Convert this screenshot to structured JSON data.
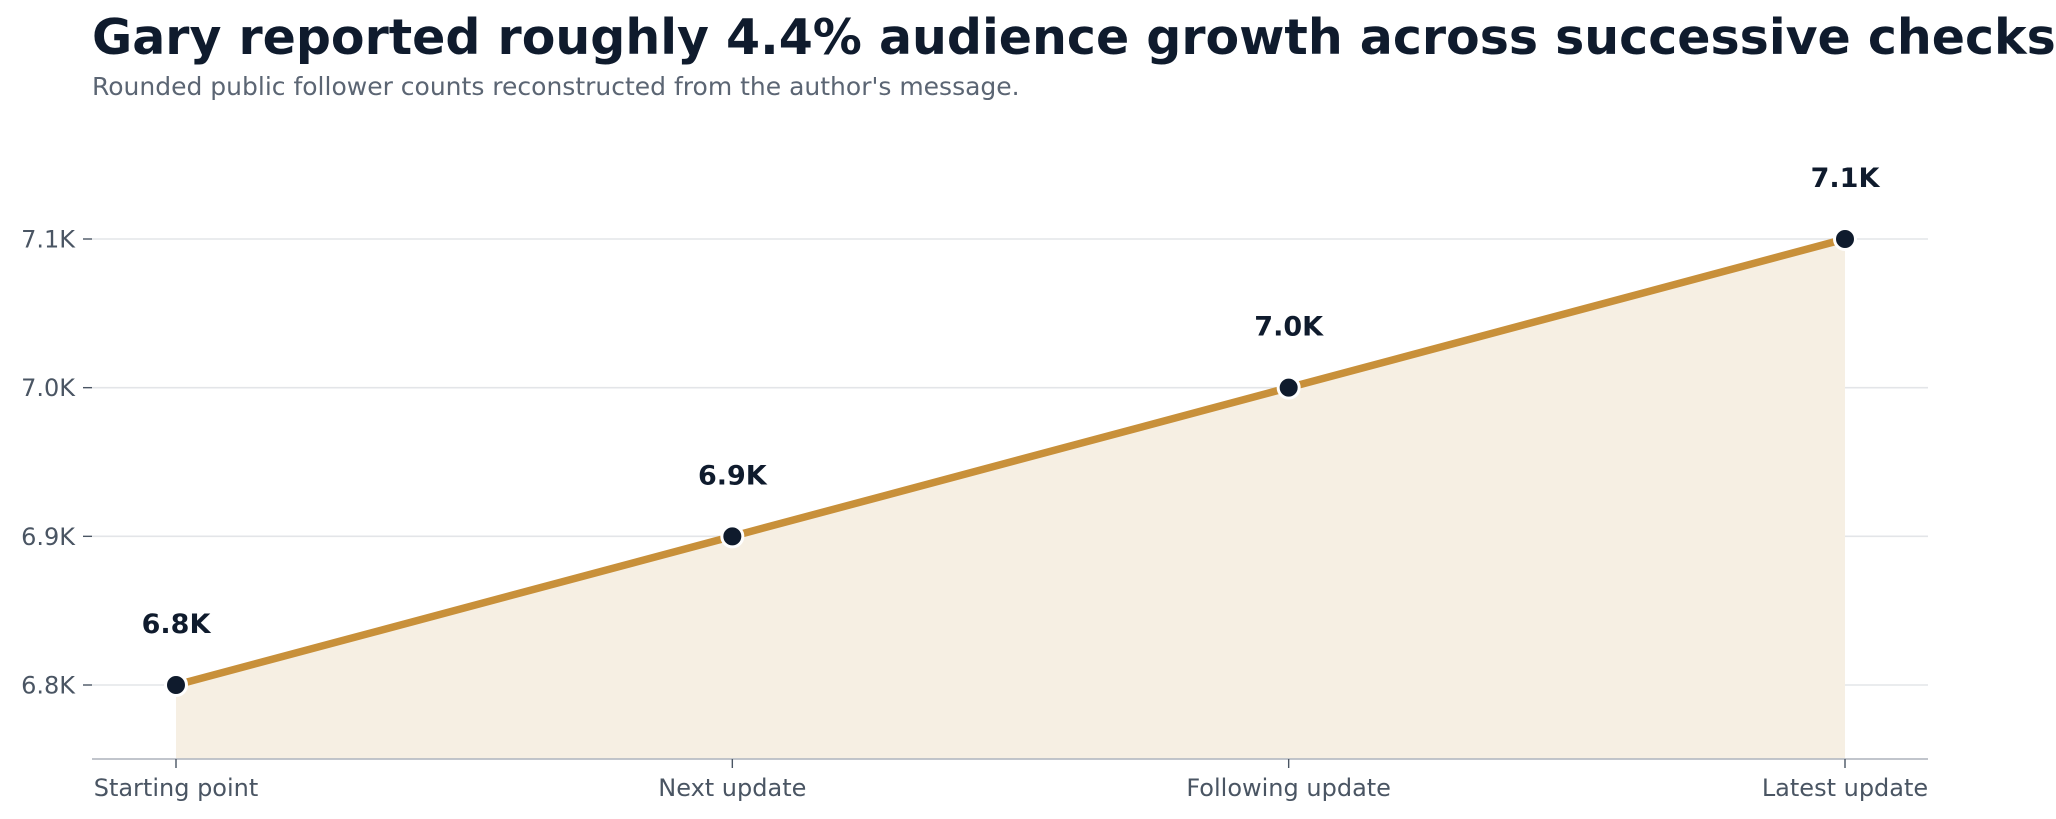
{
  "title": "Gary reported roughly 4.4% audience growth across successive checks",
  "subtitle": "Rounded public follower counts reconstructed from the author's message.",
  "colors": {
    "line": "#c8903a",
    "area": "#f6efe3",
    "marker_fill": "#0f1b2d",
    "marker_edge": "#ffffff",
    "grid": "#e3e5e8",
    "axis": "#b8bdc4"
  },
  "chart_data": {
    "type": "area",
    "categories": [
      "Starting point",
      "Next update",
      "Following update",
      "Latest update"
    ],
    "values": [
      6800,
      6900,
      7000,
      7100
    ],
    "data_labels": [
      "6.8K",
      "6.9K",
      "7.0K",
      "7.1K"
    ],
    "y_ticks": [
      6800,
      6900,
      7000,
      7100
    ],
    "y_tick_labels": [
      "6.8K",
      "6.9K",
      "7.0K",
      "7.1K"
    ],
    "ylim": [
      6750,
      7100
    ],
    "xlabel": "",
    "ylabel": "",
    "grid": "horizontal",
    "legend": "none"
  }
}
